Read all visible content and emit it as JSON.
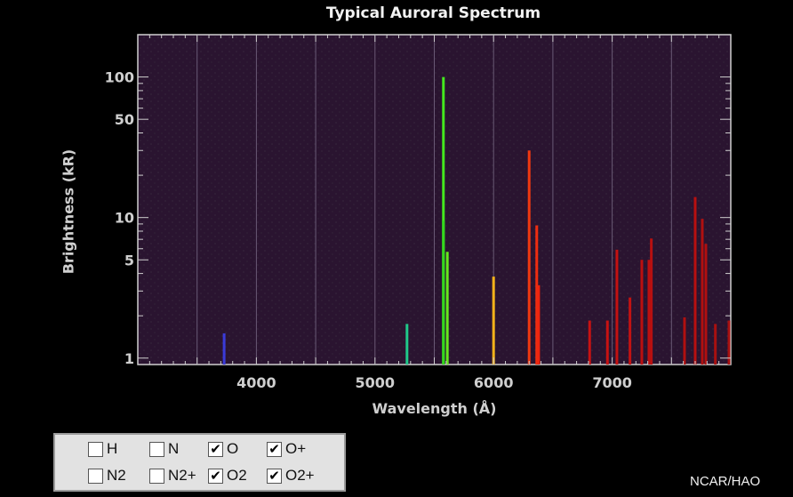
{
  "chart_data": {
    "type": "bar",
    "title": "Typical Auroral Spectrum",
    "xlabel": "Wavelength (Å)",
    "ylabel": "Brightness (kR)",
    "xlim": [
      3000,
      8000
    ],
    "ylim": [
      0.9,
      200
    ],
    "yscale": "log",
    "x_ticks": [
      4000,
      5000,
      6000,
      7000
    ],
    "x_tick_labels": [
      "4000",
      "5000",
      "6000",
      "7000"
    ],
    "y_ticks": [
      1,
      5,
      10,
      50,
      100
    ],
    "y_tick_labels": [
      "1",
      "5",
      "10",
      "50",
      "100"
    ],
    "grid": true,
    "series": [
      {
        "x": 3728,
        "y": 1.5,
        "color": "#3a3ad8"
      },
      {
        "x": 5270,
        "y": 1.75,
        "color": "#20c88a"
      },
      {
        "x": 5577,
        "y": 100,
        "color": "#44e81e"
      },
      {
        "x": 5577,
        "y": 9.5,
        "color": "#34d81e"
      },
      {
        "x": 5610,
        "y": 5.7,
        "color": "#66e81e"
      },
      {
        "x": 6000,
        "y": 3.8,
        "color": "#f2b21a"
      },
      {
        "x": 6300,
        "y": 30,
        "color": "#f03810"
      },
      {
        "x": 6364,
        "y": 8.8,
        "color": "#ee2d10"
      },
      {
        "x": 6380,
        "y": 3.3,
        "color": "#ee2410"
      },
      {
        "x": 6810,
        "y": 1.85,
        "color": "#c81212"
      },
      {
        "x": 6960,
        "y": 1.85,
        "color": "#c81212"
      },
      {
        "x": 7040,
        "y": 5.9,
        "color": "#c41212"
      },
      {
        "x": 7150,
        "y": 2.7,
        "color": "#c21212"
      },
      {
        "x": 7250,
        "y": 5.0,
        "color": "#bb1010"
      },
      {
        "x": 7310,
        "y": 5.0,
        "color": "#bb1010"
      },
      {
        "x": 7330,
        "y": 7.1,
        "color": "#b81010"
      },
      {
        "x": 7610,
        "y": 1.95,
        "color": "#b01010"
      },
      {
        "x": 7700,
        "y": 14,
        "color": "#b81010"
      },
      {
        "x": 7760,
        "y": 9.8,
        "color": "#b01010"
      },
      {
        "x": 7790,
        "y": 6.5,
        "color": "#b01010"
      },
      {
        "x": 7870,
        "y": 1.75,
        "color": "#a81010"
      },
      {
        "x": 7985,
        "y": 1.85,
        "color": "#a81010"
      }
    ]
  },
  "legend": {
    "items": [
      {
        "label": "H",
        "checked": false
      },
      {
        "label": "N",
        "checked": false
      },
      {
        "label": "O",
        "checked": true
      },
      {
        "label": "O+",
        "checked": true
      },
      {
        "label": "N2",
        "checked": false
      },
      {
        "label": "N2+",
        "checked": false
      },
      {
        "label": "O2",
        "checked": true
      },
      {
        "label": "O2+",
        "checked": true
      }
    ]
  },
  "credit": "NCAR/HAO",
  "colors": {
    "background": "#000000",
    "plot_background": "#2a1430",
    "axis": "#cfcfcf",
    "gridline": "#6a5a76"
  },
  "icons": {
    "checked": "check-mark-icon"
  }
}
